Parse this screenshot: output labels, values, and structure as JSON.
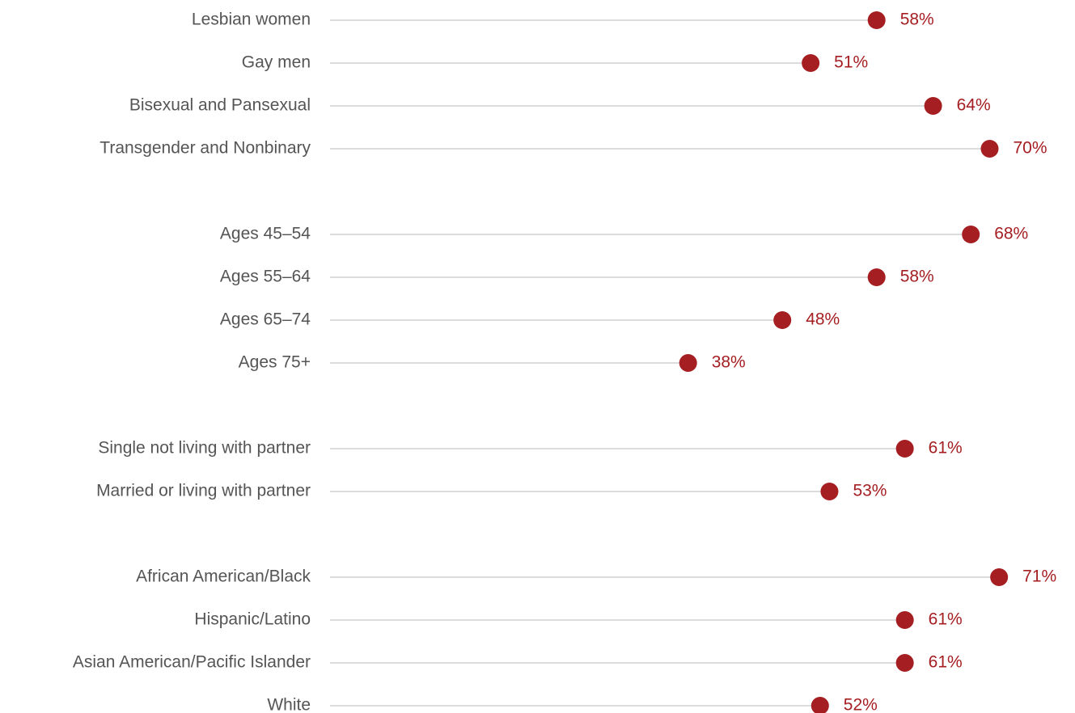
{
  "chart_data": {
    "type": "dot",
    "color": "#a51e22",
    "xlim": [
      0,
      100
    ],
    "groups": [
      {
        "categories": [
          "Lesbian women",
          "Gay men",
          "Bisexual and Pansexual",
          "Transgender and Nonbinary"
        ],
        "values": [
          58,
          51,
          64,
          70
        ],
        "value_labels": [
          "58%",
          "51%",
          "64%",
          "70%"
        ]
      },
      {
        "categories": [
          "Ages 45–54",
          "Ages 55–64",
          "Ages 65–74",
          "Ages 75+"
        ],
        "values": [
          68,
          58,
          48,
          38
        ],
        "value_labels": [
          "68%",
          "58%",
          "48%",
          "38%"
        ]
      },
      {
        "categories": [
          "Single not living with partner",
          "Married or living with partner"
        ],
        "values": [
          61,
          53
        ],
        "value_labels": [
          "61%",
          "53%"
        ]
      },
      {
        "categories": [
          "African American/Black",
          "Hispanic/Latino",
          "Asian American/Pacific Islander",
          "White"
        ],
        "values": [
          71,
          61,
          61,
          52
        ],
        "value_labels": [
          "71%",
          "61%",
          "61%",
          "52%"
        ]
      }
    ]
  }
}
